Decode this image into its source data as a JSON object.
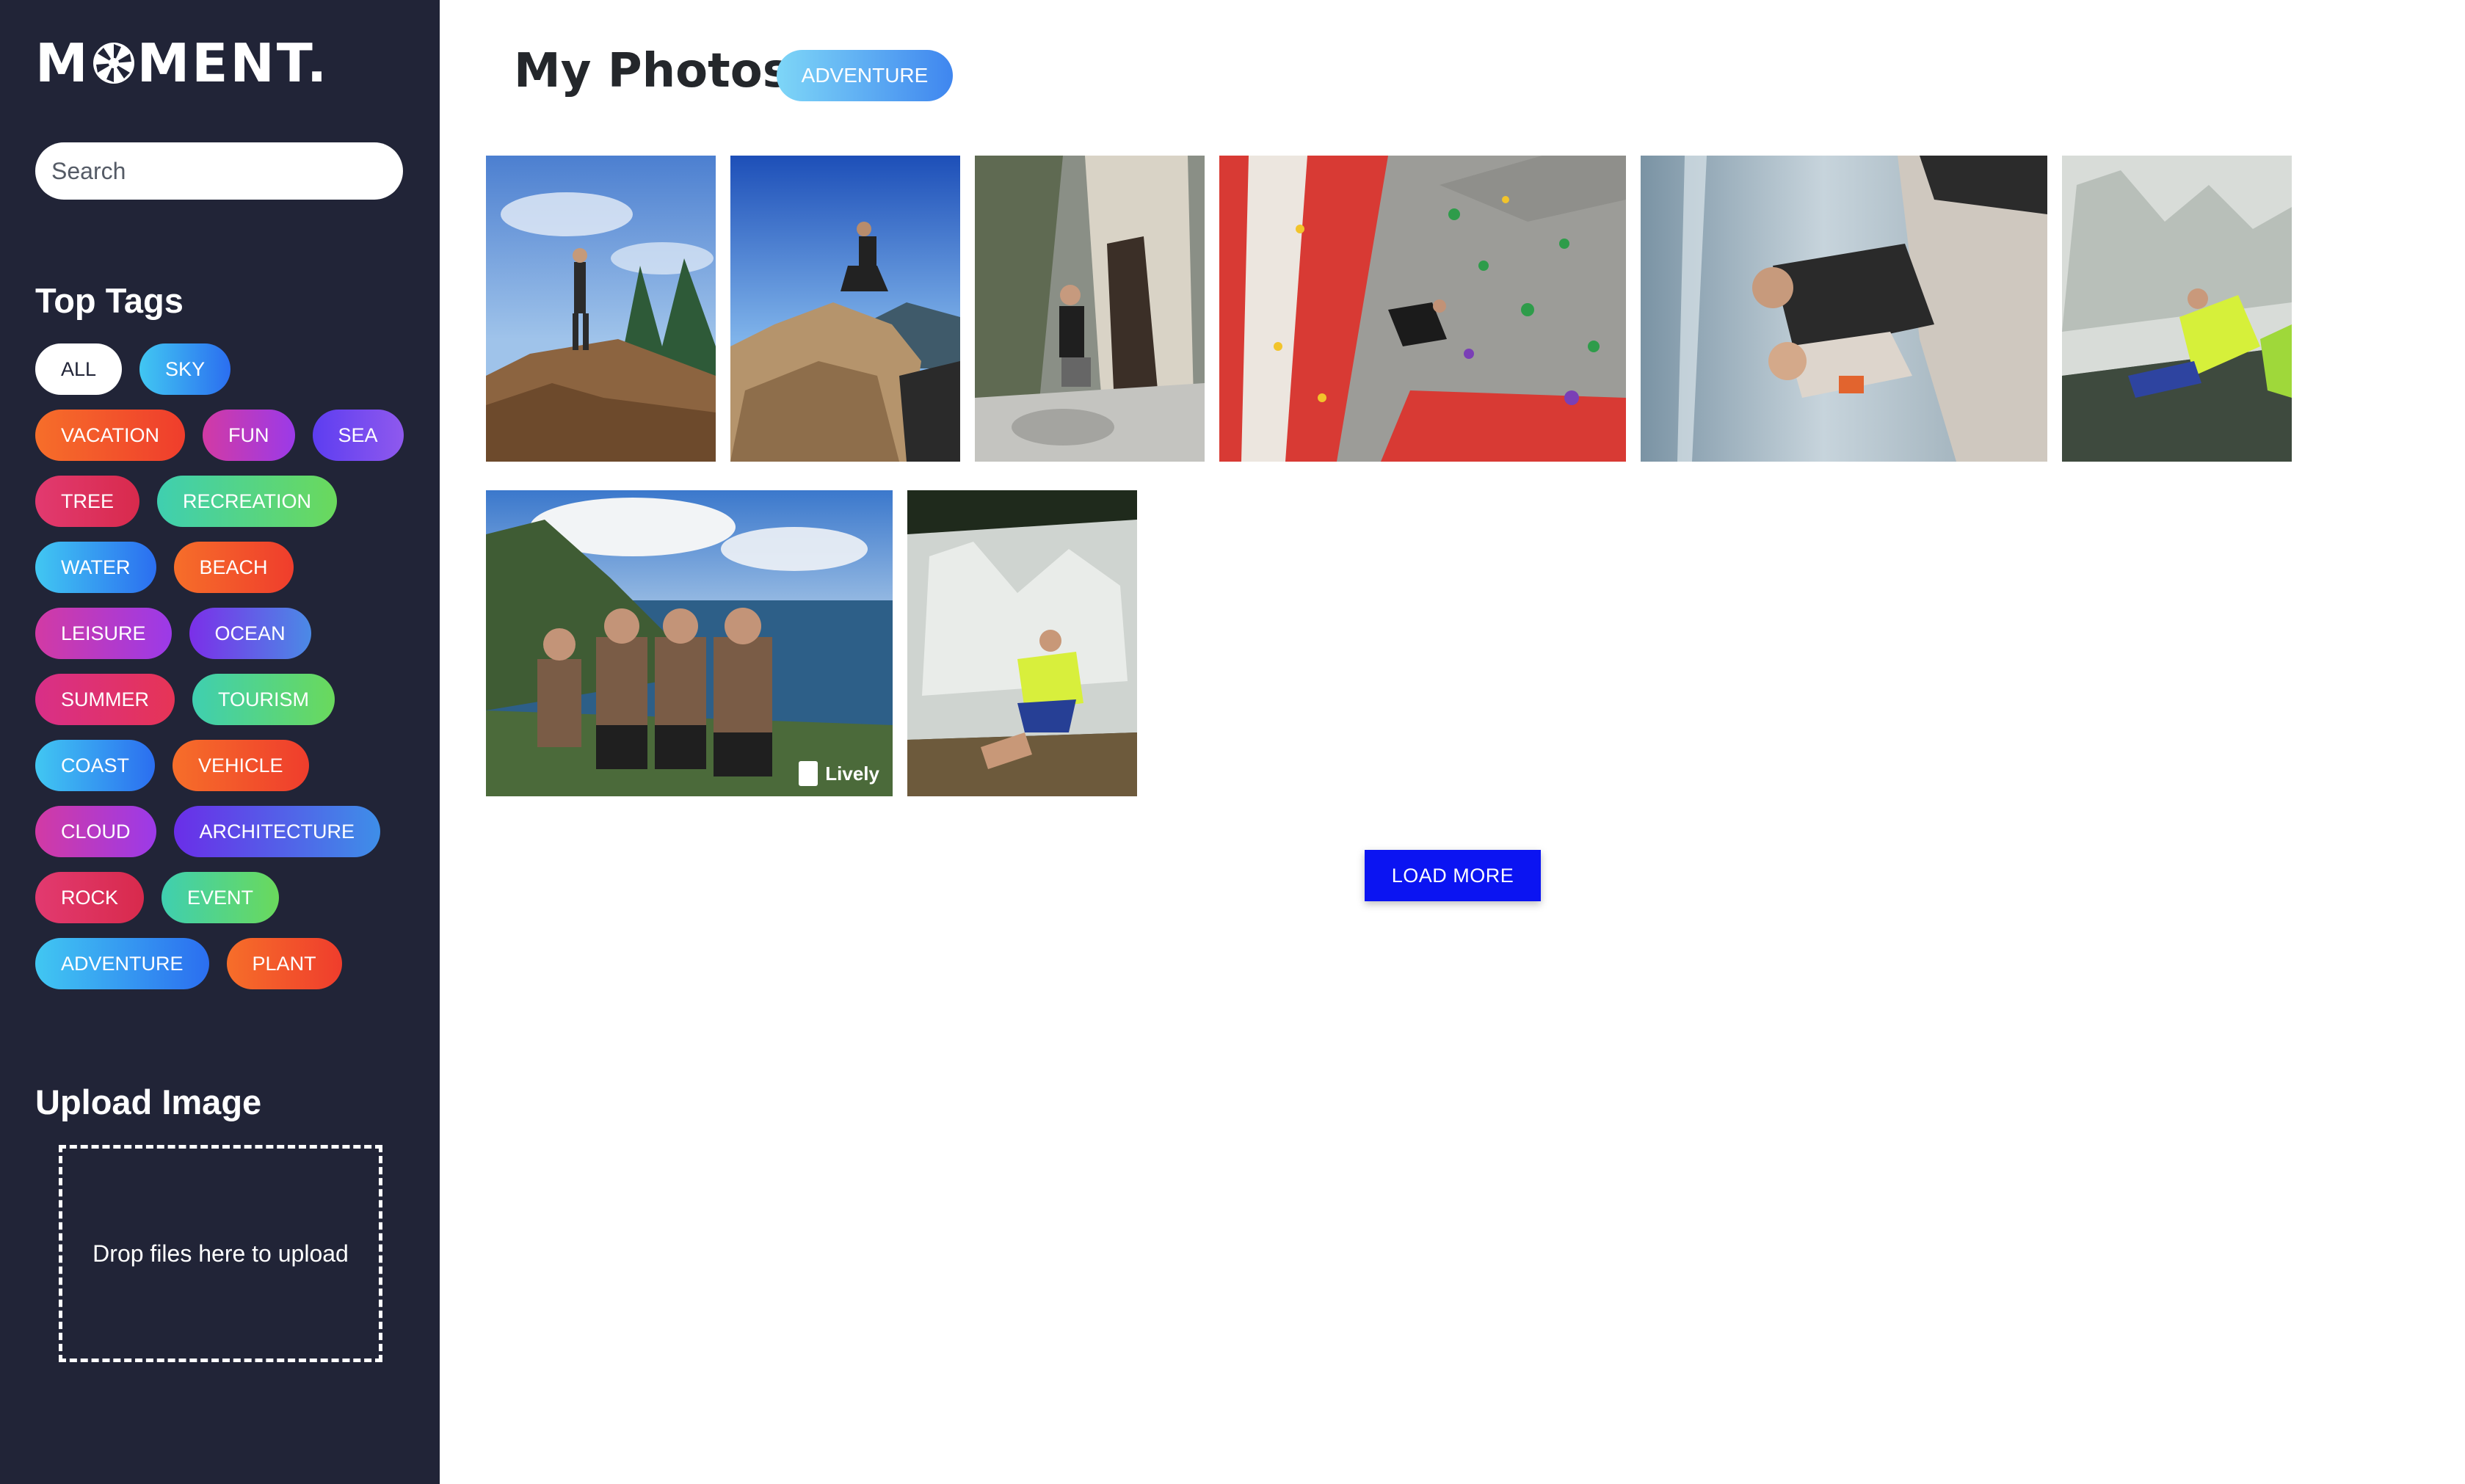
{
  "app": {
    "logo_text": "MOMENT.",
    "logo_before": "M",
    "logo_after": "MENT."
  },
  "sidebar": {
    "search_placeholder": "Search",
    "top_tags_title": "Top Tags",
    "tags": [
      {
        "label": "ALL",
        "active": true
      },
      {
        "label": "SKY",
        "color": "blue"
      },
      {
        "label": "VACATION",
        "color": "orange"
      },
      {
        "label": "FUN",
        "color": "pink"
      },
      {
        "label": "SEA",
        "color": "purple"
      },
      {
        "label": "TREE",
        "color": "red"
      },
      {
        "label": "RECREATION",
        "color": "green"
      },
      {
        "label": "WATER",
        "color": "blue"
      },
      {
        "label": "BEACH",
        "color": "orange"
      },
      {
        "label": "LEISURE",
        "color": "pink"
      },
      {
        "label": "OCEAN",
        "color": "violet"
      },
      {
        "label": "SUMMER",
        "color": "rose"
      },
      {
        "label": "TOURISM",
        "color": "green"
      },
      {
        "label": "COAST",
        "color": "blue"
      },
      {
        "label": "VEHICLE",
        "color": "orange"
      },
      {
        "label": "CLOUD",
        "color": "pink"
      },
      {
        "label": "ARCHITECTURE",
        "color": "arch"
      },
      {
        "label": "ROCK",
        "color": "red"
      },
      {
        "label": "EVENT",
        "color": "green"
      },
      {
        "label": "ADVENTURE",
        "color": "blue"
      },
      {
        "label": "PLANT",
        "color": "orange"
      }
    ],
    "upload_title": "Upload Image",
    "dropzone_text": "Drop files here to upload"
  },
  "main": {
    "title": "My Photos",
    "active_tag": "ADVENTURE",
    "photos": [
      {
        "subject": "hiker-on-cliff"
      },
      {
        "subject": "hiker-on-boulder"
      },
      {
        "subject": "hiker-in-tree"
      },
      {
        "subject": "climbing-wall"
      },
      {
        "subject": "couple-by-waterfall"
      },
      {
        "subject": "man-in-waterfall"
      },
      {
        "subject": "group-on-coast",
        "badge": "Lively"
      },
      {
        "subject": "man-in-cascade"
      }
    ],
    "load_more_label": "LOAD MORE"
  },
  "colors": {
    "sidebar_bg": "#212437",
    "accent_button": "#0b14f2",
    "title_text": "#24272b"
  }
}
